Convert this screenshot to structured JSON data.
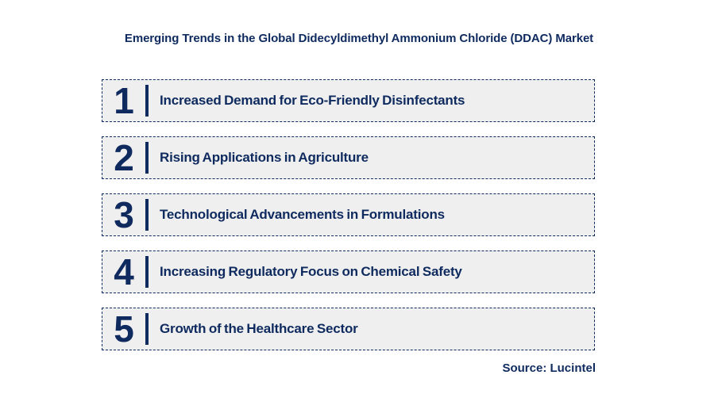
{
  "title": "Emerging Trends in the Global Didecyldimethyl Ammonium Chloride (DDAC) Market",
  "source": "Source: Lucintel",
  "colors": {
    "navy": "#0e2a5e",
    "box_bg": "#efefef",
    "page_bg": "#ffffff"
  },
  "trends": [
    {
      "number": "1",
      "label": "Increased Demand for Eco-Friendly Disinfectants"
    },
    {
      "number": "2",
      "label": "Rising Applications in Agriculture"
    },
    {
      "number": "3",
      "label": "Technological Advancements in Formulations"
    },
    {
      "number": "4",
      "label": "Increasing Regulatory Focus on Chemical Safety"
    },
    {
      "number": "5",
      "label": "Growth of the Healthcare Sector"
    }
  ]
}
